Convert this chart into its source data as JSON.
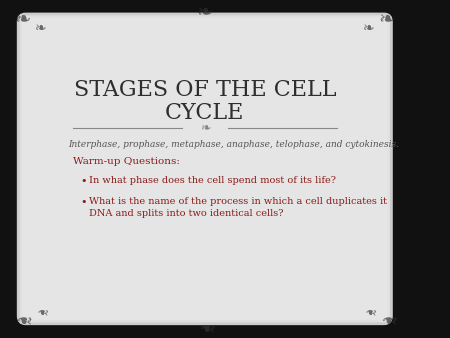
{
  "title_line1": "STAGES OF THE CELL",
  "title_line2": "CYCLE",
  "subtitle": "Interphase, prophase, metaphase, anaphase, telophase, and cytokinesis.",
  "warmup_label": "Warm-up Questions:",
  "bullet1": "In what phase does the cell spend most of its life?",
  "bullet2_line1": "What is the name of the process in which a cell duplicates it",
  "bullet2_line2": "DNA and splits into two identical cells?",
  "bg_outer": "#111111",
  "bg_inner_top": "#d8d8d8",
  "bg_inner_bottom": "#e8e8e8",
  "title_color": "#2e2e2e",
  "subtitle_color": "#555555",
  "warmup_color": "#8b1a1a",
  "bullet_color": "#8b1a1a",
  "divider_color": "#888888"
}
